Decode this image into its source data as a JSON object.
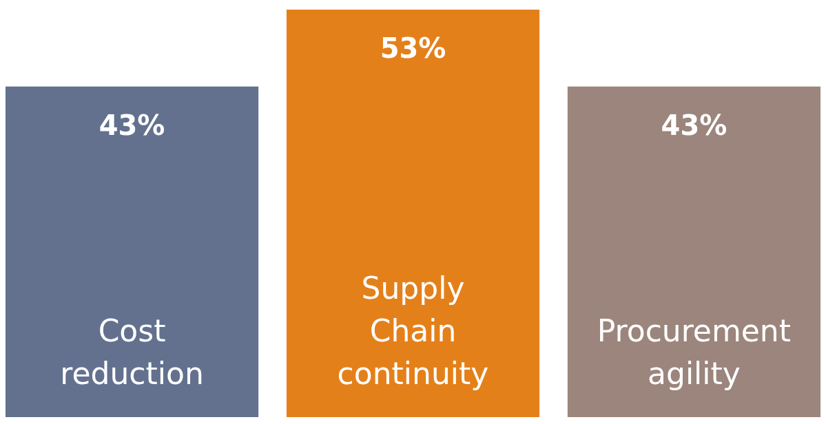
{
  "chart_data": {
    "type": "bar",
    "categories": [
      "Cost reduction",
      "Supply Chain continuity",
      "Procurement agility"
    ],
    "values": [
      43,
      53,
      43
    ],
    "colors": [
      "#63718f",
      "#e4801a",
      "#9b857c"
    ],
    "value_labels": [
      "43%",
      "53%",
      "43%"
    ]
  }
}
